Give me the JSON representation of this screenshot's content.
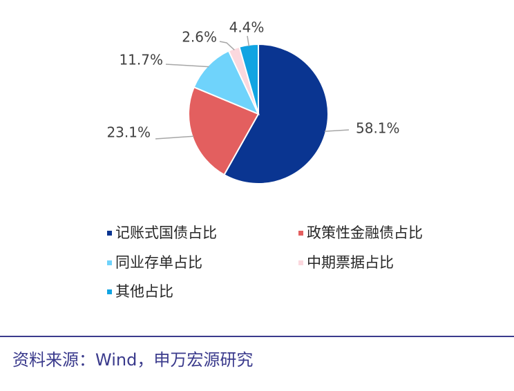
{
  "chart_data": {
    "type": "pie",
    "categories": [
      "记账式国债占比",
      "政策性金融债占比",
      "同业存单占比",
      "中期票据占比",
      "其他占比"
    ],
    "values": [
      58.1,
      23.1,
      11.7,
      2.6,
      4.4
    ],
    "value_labels": [
      "58.1%",
      "23.1%",
      "11.7%",
      "2.6%",
      "4.4%"
    ],
    "colors": [
      "#0a3591",
      "#e35f5f",
      "#6fd3fb",
      "#fbd8de",
      "#11a4e2"
    ],
    "source": "资料来源：Wind，申万宏源研究"
  }
}
